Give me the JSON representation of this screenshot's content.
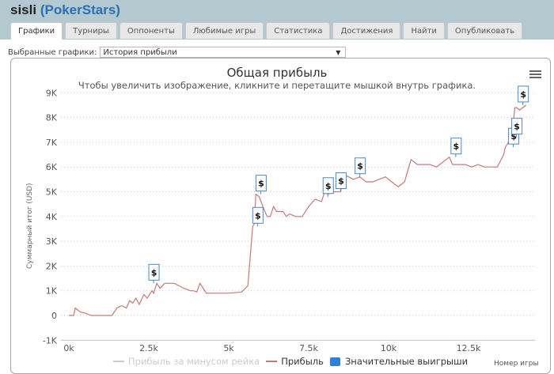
{
  "header": {
    "player": "sisli",
    "site": "PokerStars"
  },
  "tabs": [
    {
      "label": "Графики",
      "active": true
    },
    {
      "label": "Турниры"
    },
    {
      "label": "Оппоненты"
    },
    {
      "label": "Любимые игры"
    },
    {
      "label": "Статистика"
    },
    {
      "label": "Достижения"
    },
    {
      "label": "Найти"
    },
    {
      "label": "Опубликовать"
    }
  ],
  "selector": {
    "label": "Выбранные графики:",
    "value": "История прибыли",
    "arrow": "▼"
  },
  "chart_menu_icon": "hamburger-menu-icon",
  "colors": {
    "profit_line": "#c47a7a",
    "rake_line": "#cccccc",
    "marker_border": "#4a88c8",
    "legend_box": "#2f7ed8",
    "grid": "#c8c8c8"
  },
  "chart_data": {
    "type": "line",
    "title": "Общая прибыль",
    "subtitle": "Чтобы увеличить изображение, кликните и перетащите мышкой внутрь графика.",
    "xlabel": "Номер игры",
    "ylabel": "Суммарный итог (USD)",
    "xlim": [
      0,
      14500
    ],
    "ylim": [
      -1000,
      9000
    ],
    "x_ticks": [
      "0k",
      "2.5k",
      "5k",
      "7.5k",
      "10k",
      "12.5k"
    ],
    "y_ticks": [
      "9K",
      "8K",
      "7K",
      "6K",
      "5K",
      "4K",
      "3K",
      "2K",
      "1K",
      "0",
      "-1K"
    ],
    "grid": "horizontal dotted",
    "legend_position": "bottom",
    "legend": [
      {
        "name": "Прибыль за минусом рейка",
        "hidden": true
      },
      {
        "name": "Прибыль"
      },
      {
        "name": "Значительные выигрыши"
      }
    ],
    "series": [
      {
        "name": "Прибыль",
        "x": [
          0,
          150,
          200,
          350,
          500,
          700,
          900,
          1100,
          1350,
          1500,
          1650,
          1800,
          1900,
          2000,
          2100,
          2200,
          2350,
          2450,
          2600,
          2650,
          2750,
          2850,
          3000,
          3300,
          3600,
          3800,
          3900,
          4000,
          4100,
          4200,
          4300,
          4600,
          5000,
          5400,
          5600,
          5750,
          5800,
          5850,
          5950,
          6100,
          6200,
          6300,
          6400,
          6500,
          6700,
          6800,
          6900,
          7100,
          7300,
          7500,
          7700,
          7900,
          8000,
          8100,
          8300,
          8500,
          8600,
          8900,
          9100,
          9300,
          9500,
          9700,
          9900,
          10100,
          10300,
          10500,
          10700,
          10900,
          11100,
          11300,
          11500,
          11700,
          11900,
          12000,
          12200,
          12400,
          12600,
          12800,
          13000,
          13200,
          13400,
          13600,
          13650,
          13750,
          13850,
          13950,
          14000,
          14100,
          14200,
          14300
        ],
        "y": [
          0,
          0,
          300,
          150,
          100,
          0,
          0,
          0,
          0,
          300,
          400,
          300,
          600,
          500,
          700,
          450,
          850,
          700,
          1000,
          900,
          1300,
          1100,
          1300,
          1300,
          1100,
          1000,
          1000,
          950,
          1300,
          1100,
          900,
          900,
          900,
          950,
          1200,
          3600,
          3700,
          4900,
          4800,
          4300,
          4000,
          4000,
          4400,
          4200,
          4200,
          4000,
          4100,
          4000,
          4000,
          4400,
          4700,
          4600,
          5000,
          4900,
          5000,
          5000,
          5700,
          5500,
          5600,
          5400,
          5400,
          5500,
          5600,
          5400,
          5200,
          5400,
          6300,
          6100,
          6100,
          6100,
          6000,
          6200,
          6400,
          6100,
          6100,
          6100,
          6000,
          6100,
          6000,
          6000,
          6000,
          6500,
          6800,
          7000,
          7200,
          8400,
          8400,
          8300,
          8400,
          8500
        ]
      },
      {
        "name": "Значительные выигрыши",
        "marker": "$",
        "x": [
          2650,
          5900,
          6000,
          8100,
          8500,
          9100,
          12100,
          13900,
          14000,
          14200
        ],
        "y": [
          1300,
          3600,
          4900,
          4800,
          5000,
          5600,
          6400,
          6800,
          7200,
          8500
        ]
      }
    ]
  }
}
